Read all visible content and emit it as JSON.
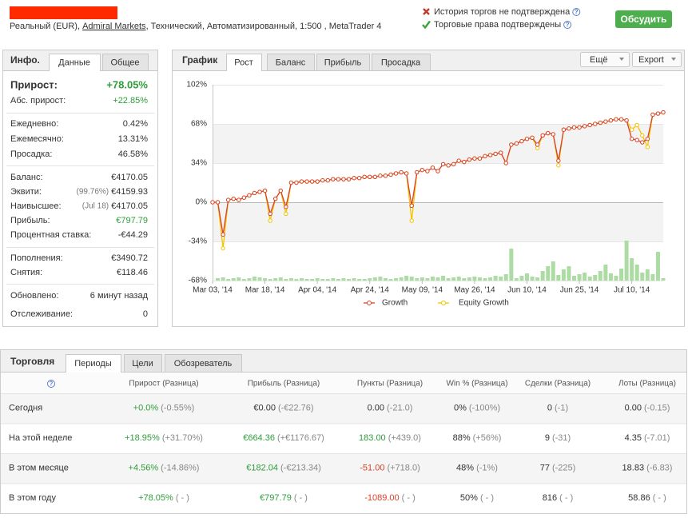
{
  "header": {
    "account": [
      "Реальный (EUR), ",
      "Admiral Markets",
      ", Технический, Автоматизированный, 1:500 , MetaTrader 4"
    ],
    "statuses": [
      "История торгов не подтверждена",
      "Торговые права подтверждены"
    ],
    "help": "?",
    "button": "Обсудить"
  },
  "info": {
    "title": "Инфо.",
    "tabs": [
      "Данные",
      "Общее"
    ],
    "sections": [
      [
        {
          "label": "Прирост:",
          "value": "+78.05%",
          "color": "#2e9e3a"
        },
        {
          "label": "Абс. прирост:",
          "value": "+22.85%",
          "color": "#2e9e3a"
        }
      ],
      [
        {
          "label": "Ежедневно:",
          "value": "0.42%"
        },
        {
          "label": "Ежемесячно:",
          "value": "13.31%"
        },
        {
          "label": "Просадка:",
          "value": "46.58%"
        }
      ],
      [
        {
          "label": "Баланс:",
          "value": "€4170.05"
        },
        {
          "label": "Эквити:",
          "note": "(99.76%)",
          "value": "€4159.93"
        },
        {
          "label": "Наивысшее:",
          "note": "(Jul 18)",
          "value": "€4170.05"
        },
        {
          "label": "Прибыль:",
          "value": "€797.79",
          "color": "#2e9e3a"
        },
        {
          "label": "Процентная ставка:",
          "value": "-€44.29"
        }
      ],
      [
        {
          "label": "Пополнения:",
          "value": "€3490.72"
        },
        {
          "label": "Снятия:",
          "value": "€118.46"
        }
      ],
      [
        {
          "label": "Обновлено:",
          "value": "6 минут назад"
        },
        {
          "label": "Отслеживание:",
          "value": "0"
        }
      ]
    ]
  },
  "chart_panel": {
    "title": "График",
    "tabs": [
      "Рост",
      "Баланс",
      "Прибыль",
      "Просадка"
    ],
    "buttons": [
      "Ещё",
      "Export"
    ]
  },
  "chart_data": {
    "type": "line",
    "categories": [
      "Mar 03, '14",
      null,
      null,
      null,
      null,
      null,
      null,
      null,
      null,
      null,
      "Mar 18, '14",
      null,
      null,
      null,
      null,
      null,
      null,
      null,
      null,
      null,
      "Apr 04, '14",
      null,
      null,
      null,
      null,
      null,
      null,
      null,
      null,
      null,
      "Apr 24, '14",
      null,
      null,
      null,
      null,
      null,
      null,
      null,
      null,
      null,
      "May 09, '14",
      null,
      null,
      null,
      null,
      null,
      null,
      null,
      null,
      null,
      "May 26, '14",
      null,
      null,
      null,
      null,
      null,
      null,
      null,
      null,
      null,
      "Jun 10, '14",
      null,
      null,
      null,
      null,
      null,
      null,
      null,
      null,
      null,
      "Jun 25, '14",
      null,
      null,
      null,
      null,
      null,
      null,
      null,
      null,
      null,
      "Jul 10, '14",
      null,
      null,
      null,
      null,
      null,
      null
    ],
    "series": [
      {
        "name": "Growth",
        "color": "#d9412b",
        "values": [
          0,
          0,
          -28,
          2,
          3,
          2,
          4,
          6,
          8,
          9,
          10,
          -10,
          3,
          10,
          -4,
          17,
          17,
          18,
          18,
          18,
          18,
          19,
          19,
          20,
          20,
          20,
          20,
          21,
          21,
          22,
          22,
          22,
          23,
          23,
          24,
          25,
          26,
          25,
          -3,
          26,
          28,
          27,
          30,
          27,
          33,
          32,
          33,
          36,
          35,
          37,
          38,
          38,
          40,
          41,
          42,
          43,
          34,
          50,
          51,
          53,
          55,
          56,
          50,
          58,
          60,
          59,
          36,
          63,
          64,
          65,
          65,
          66,
          67,
          68,
          69,
          70,
          71,
          72,
          72,
          71,
          55,
          54,
          52,
          55,
          76,
          77,
          78
        ]
      },
      {
        "name": "Equity Growth",
        "color": "#f2c500",
        "values": [
          0,
          0,
          -40,
          2,
          3,
          2,
          4,
          6,
          8,
          9,
          10,
          -16,
          3,
          10,
          -10,
          17,
          17,
          18,
          18,
          18,
          18,
          19,
          19,
          20,
          20,
          20,
          20,
          21,
          21,
          22,
          22,
          22,
          23,
          23,
          24,
          25,
          26,
          25,
          -16,
          26,
          28,
          27,
          30,
          27,
          33,
          32,
          33,
          36,
          35,
          37,
          38,
          38,
          40,
          41,
          42,
          43,
          34,
          50,
          51,
          53,
          55,
          56,
          47,
          58,
          60,
          59,
          32,
          63,
          64,
          65,
          65,
          66,
          67,
          68,
          69,
          70,
          71,
          72,
          72,
          71,
          63,
          67,
          58,
          48,
          76,
          77,
          78
        ]
      }
    ],
    "bar_values": [
      0,
      3,
      4,
      2,
      3,
      4,
      2,
      3,
      5,
      4,
      3,
      2,
      3,
      4,
      2,
      3,
      2,
      3,
      2,
      2,
      3,
      2,
      2,
      3,
      2,
      3,
      2,
      3,
      2,
      2,
      3,
      4,
      5,
      3,
      2,
      3,
      4,
      6,
      5,
      3,
      4,
      3,
      5,
      4,
      6,
      3,
      4,
      5,
      3,
      4,
      5,
      4,
      3,
      4,
      6,
      5,
      8,
      40,
      3,
      6,
      9,
      5,
      4,
      12,
      18,
      24,
      7,
      14,
      18,
      6,
      8,
      10,
      5,
      7,
      12,
      20,
      9,
      6,
      15,
      50,
      28,
      20,
      10,
      14,
      8,
      36,
      3
    ],
    "bar_color": "#acdca4",
    "ylim": [
      -68,
      102
    ],
    "yticks": [
      {
        "value": 102,
        "label": "102%"
      },
      {
        "value": 68,
        "label": "68%"
      },
      {
        "value": 34,
        "label": "34%"
      },
      {
        "value": 0,
        "label": "0%"
      },
      {
        "value": -34,
        "label": "-34%"
      },
      {
        "value": -68,
        "label": "-68%"
      }
    ],
    "grid": true
  },
  "table": {
    "title": "Торговля",
    "tabs": [
      "Периоды",
      "Цели",
      "Обозреватель"
    ],
    "help": "?",
    "columns": [
      "Прирост (Разница)",
      "Прибыль (Разница)",
      "Пункты (Разница)",
      "Win % (Разница)",
      "Сделки (Разница)",
      "Лоты (Разница)"
    ],
    "rows": [
      {
        "name": "Сегодня",
        "cells": [
          {
            "value": "+0.0%",
            "diff": "(-0.55%)",
            "color": "#2e9e3a"
          },
          {
            "value": "€0.00",
            "diff": "(-€22.76)"
          },
          {
            "value": "0.00",
            "diff": "(-21.0)"
          },
          {
            "value": "0%",
            "diff": "(-100%)"
          },
          {
            "value": "0",
            "diff": "(-1)"
          },
          {
            "value": "0.00",
            "diff": "(-0.15)"
          }
        ]
      },
      {
        "name": "На этой неделе",
        "cells": [
          {
            "value": "+18.95%",
            "diff": "(+31.70%)",
            "color": "#2e9e3a"
          },
          {
            "value": "€664.36",
            "diff": "(+€1176.67)",
            "color": "#2e9e3a"
          },
          {
            "value": "183.00",
            "diff": "(+439.0)",
            "color": "#2e9e3a"
          },
          {
            "value": "88%",
            "diff": "(+56%)"
          },
          {
            "value": "9",
            "diff": "(-31)"
          },
          {
            "value": "4.35",
            "diff": "(-7.01)"
          }
        ]
      },
      {
        "name": "В этом месяце",
        "cells": [
          {
            "value": "+4.56%",
            "diff": "(-14.86%)",
            "color": "#2e9e3a"
          },
          {
            "value": "€182.04",
            "diff": "(-€213.34)",
            "color": "#2e9e3a"
          },
          {
            "value": "-51.00",
            "diff": "(+718.0)",
            "color": "#d9412b"
          },
          {
            "value": "48%",
            "diff": "(-1%)"
          },
          {
            "value": "77",
            "diff": "(-225)"
          },
          {
            "value": "18.83",
            "diff": "(-6.83)"
          }
        ]
      },
      {
        "name": "В этом году",
        "cells": [
          {
            "value": "+78.05%",
            "diff": "( - )",
            "color": "#2e9e3a"
          },
          {
            "value": "€797.79",
            "diff": "( - )",
            "color": "#2e9e3a"
          },
          {
            "value": "-1089.00",
            "diff": "( - )",
            "color": "#d9412b"
          },
          {
            "value": "50%",
            "diff": "( - )"
          },
          {
            "value": "816",
            "diff": "( - )"
          },
          {
            "value": "58.86",
            "diff": "( - )"
          }
        ]
      }
    ]
  }
}
